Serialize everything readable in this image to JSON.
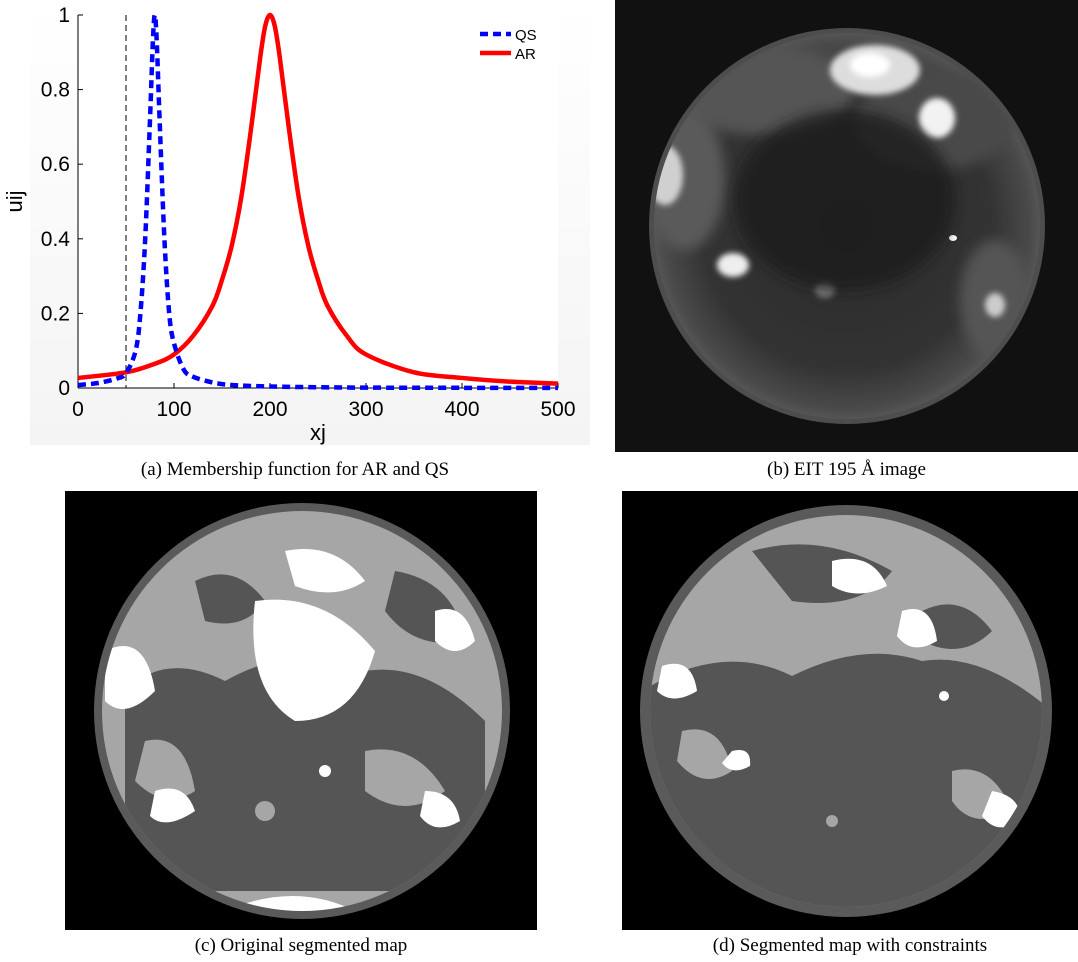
{
  "figure": {
    "captions": {
      "a": "(a) Membership function for AR and QS",
      "b": "(b) EIT 195 Å image",
      "c": "(c) Original segmented map",
      "d": "(d) Segmented map with constraints"
    }
  },
  "chart_data": {
    "type": "line",
    "xlabel": "xj",
    "ylabel": "uij",
    "xlim": [
      0,
      500
    ],
    "ylim": [
      0,
      1
    ],
    "xticks": [
      0,
      100,
      200,
      300,
      400,
      500
    ],
    "yticks": [
      0,
      0.2,
      0.4,
      0.6,
      0.8,
      1
    ],
    "xtick_labels": [
      "0",
      "100",
      "200",
      "300",
      "400",
      "500"
    ],
    "ytick_labels": [
      "0",
      "0.2",
      "0.4",
      "0.6",
      "0.8",
      "1"
    ],
    "legend_position": "top-right",
    "grid": false,
    "reference_line": {
      "x": 50,
      "style": "dashed",
      "color": "#000000"
    },
    "series": [
      {
        "name": "QS",
        "color": "#0000ff",
        "style": "dashed",
        "x": [
          0,
          20,
          40,
          50,
          60,
          65,
          70,
          75,
          78,
          80,
          82,
          85,
          90,
          95,
          100,
          110,
          120,
          140,
          160,
          200,
          250,
          300,
          400,
          500
        ],
        "y": [
          0.008,
          0.013,
          0.025,
          0.04,
          0.1,
          0.2,
          0.4,
          0.72,
          0.93,
          1.0,
          0.93,
          0.72,
          0.4,
          0.2,
          0.12,
          0.05,
          0.03,
          0.015,
          0.008,
          0.004,
          0.002,
          0.001,
          0.0005,
          0.0003
        ]
      },
      {
        "name": "AR",
        "color": "#ff0000",
        "style": "solid",
        "x": [
          0,
          50,
          80,
          100,
          120,
          140,
          150,
          160,
          170,
          180,
          190,
          195,
          200,
          205,
          210,
          220,
          230,
          240,
          250,
          260,
          280,
          300,
          350,
          400,
          450,
          500
        ],
        "y": [
          0.027,
          0.042,
          0.065,
          0.09,
          0.14,
          0.22,
          0.29,
          0.38,
          0.51,
          0.69,
          0.89,
          0.97,
          1.0,
          0.97,
          0.89,
          0.69,
          0.51,
          0.38,
          0.29,
          0.22,
          0.14,
          0.09,
          0.042,
          0.027,
          0.017,
          0.012
        ]
      }
    ]
  }
}
